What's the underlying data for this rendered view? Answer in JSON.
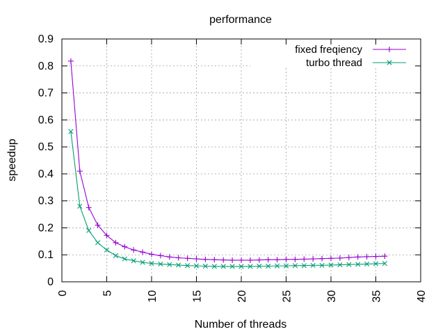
{
  "chart_data": {
    "type": "line",
    "title": "performance",
    "xlabel": "Number of threads",
    "ylabel": "speedup",
    "xlim": [
      0,
      40
    ],
    "ylim": [
      0,
      0.9
    ],
    "xticks": [
      0,
      5,
      10,
      15,
      20,
      25,
      30,
      35,
      40
    ],
    "yticks": [
      0,
      0.1,
      0.2,
      0.3,
      0.4,
      0.5,
      0.6,
      0.7,
      0.8,
      0.9
    ],
    "ytick_labels": [
      "0",
      "0.1",
      "0.2",
      "0.3",
      "0.4",
      "0.5",
      "0.6",
      "0.7",
      "0.8",
      "0.9"
    ],
    "grid": true,
    "legend_position": "top-right",
    "x": [
      1,
      2,
      3,
      4,
      5,
      6,
      7,
      8,
      9,
      10,
      11,
      12,
      13,
      14,
      15,
      16,
      17,
      18,
      19,
      20,
      21,
      22,
      23,
      24,
      25,
      26,
      27,
      28,
      29,
      30,
      31,
      32,
      33,
      34,
      35,
      36
    ],
    "series": [
      {
        "name": "fixed freqiency",
        "color": "#9400d3",
        "marker": "plus",
        "values": [
          0.818,
          0.41,
          0.275,
          0.21,
          0.172,
          0.145,
          0.13,
          0.118,
          0.11,
          0.102,
          0.097,
          0.092,
          0.089,
          0.087,
          0.085,
          0.083,
          0.082,
          0.081,
          0.08,
          0.08,
          0.08,
          0.081,
          0.082,
          0.082,
          0.083,
          0.083,
          0.084,
          0.085,
          0.086,
          0.087,
          0.088,
          0.09,
          0.092,
          0.093,
          0.094,
          0.095
        ]
      },
      {
        "name": "turbo thread",
        "color": "#009e73",
        "marker": "cross",
        "values": [
          0.557,
          0.28,
          0.19,
          0.145,
          0.118,
          0.097,
          0.085,
          0.078,
          0.072,
          0.068,
          0.066,
          0.064,
          0.062,
          0.06,
          0.059,
          0.058,
          0.057,
          0.057,
          0.057,
          0.057,
          0.057,
          0.058,
          0.058,
          0.059,
          0.059,
          0.06,
          0.06,
          0.061,
          0.061,
          0.062,
          0.063,
          0.064,
          0.065,
          0.066,
          0.067,
          0.068
        ]
      }
    ]
  }
}
